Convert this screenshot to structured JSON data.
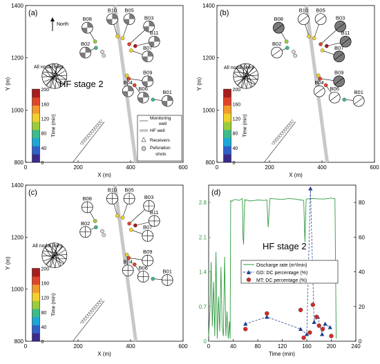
{
  "colors": {
    "colormap": [
      "#3b2a8c",
      "#2f61c9",
      "#1ca7d6",
      "#3dbb8a",
      "#9bcc3a",
      "#f2d12a",
      "#f39a2b",
      "#e0452a",
      "#a81d1d"
    ],
    "hf_well": "#c8c8c8",
    "discharge": "#2e9a3e",
    "gd": "#1f3f8f",
    "mt": "#d62a22",
    "beachball_dark": "#7a7a7a"
  },
  "panels": [
    {
      "id": "a",
      "label": "(a)",
      "stage_text": "HF stage 2",
      "nodal_text": "All nodal lines",
      "north_text": "North",
      "show_legend": true,
      "ball_style": "dark"
    },
    {
      "id": "b",
      "label": "(b)",
      "stage_text": "",
      "nodal_text": "All nodal lines",
      "north_text": "",
      "show_legend": false,
      "ball_style": "grey"
    },
    {
      "id": "c",
      "label": "(c)",
      "stage_text": "",
      "nodal_text": "All nodal lines",
      "north_text": "",
      "show_legend": false,
      "ball_style": "lines"
    }
  ],
  "map_axes": {
    "xlabel": "X (m)",
    "ylabel": "Y (m)",
    "xlim": [
      0,
      600
    ],
    "ylim": [
      800,
      1400
    ],
    "xticks": [
      "0",
      "200",
      "400",
      "600"
    ],
    "yticks": [
      "800",
      "1000",
      "1200",
      "1400"
    ]
  },
  "colorbar": {
    "label": "Time (min)",
    "ticks": [
      "200",
      "160",
      "120",
      "80",
      "40",
      "0"
    ]
  },
  "map_legend": {
    "items": [
      {
        "key": "monitoring",
        "label": "Monitoring well"
      },
      {
        "key": "hf",
        "label": "HF well"
      },
      {
        "key": "receivers",
        "label": "Receivers"
      },
      {
        "key": "perf",
        "label": "Peforation shots"
      }
    ]
  },
  "events": [
    {
      "name": "B08",
      "x": 265,
      "y": 1262,
      "time": 95,
      "bx": 235,
      "by": 1315
    },
    {
      "name": "B10",
      "x": 350,
      "y": 1282,
      "time": 118,
      "bx": 330,
      "by": 1348
    },
    {
      "name": "B05",
      "x": 370,
      "y": 1275,
      "time": 130,
      "bx": 395,
      "by": 1348
    },
    {
      "name": "B03",
      "x": 395,
      "y": 1252,
      "time": 170,
      "bx": 470,
      "by": 1320
    },
    {
      "name": "B11",
      "x": 418,
      "y": 1245,
      "time": 200,
      "bx": 490,
      "by": 1262
    },
    {
      "name": "B07",
      "x": 402,
      "y": 1228,
      "time": 130,
      "bx": 465,
      "by": 1205
    },
    {
      "name": "B02",
      "x": 268,
      "y": 1238,
      "time": 82,
      "bx": 228,
      "by": 1220
    },
    {
      "name": "B09",
      "x": 393,
      "y": 1120,
      "time": 170,
      "bx": 465,
      "by": 1110
    },
    {
      "name": "B04",
      "x": 386,
      "y": 1132,
      "time": 135,
      "bx": 390,
      "by": 1072
    },
    {
      "name": "B06",
      "x": 415,
      "y": 1095,
      "time": 175,
      "bx": 448,
      "by": 1048
    },
    {
      "name": "B01",
      "x": 485,
      "y": 1040,
      "time": 65,
      "bx": 540,
      "by": 1035
    }
  ],
  "perforation_shots": [
    {
      "x": 292,
      "y": 1223
    },
    {
      "x": 298,
      "y": 1208
    }
  ],
  "chart_data": {
    "type": "line",
    "panel_label": "(d)",
    "title": "HF stage 2",
    "xlabel": "Time (min)",
    "ylabel": "",
    "xlim": [
      0,
      240
    ],
    "ylim_left": [
      0,
      3.15
    ],
    "ylim_right": [
      0,
      90
    ],
    "x_ticks": [
      "0",
      "40",
      "80",
      "120",
      "160",
      "200",
      "240"
    ],
    "left_ticks": [
      "0",
      "0.7",
      "1.4",
      "2.1",
      "2.8"
    ],
    "right_ticks": [
      "0",
      "20",
      "40",
      "60",
      "80"
    ],
    "legend": [
      "Discharge rate (m³/min)",
      "GD: DC percentage (%)",
      "MT: DC percentage (%)"
    ],
    "series": [
      {
        "name": "Discharge rate (m³/min)",
        "axis": "left",
        "x": [
          0,
          2,
          4,
          6,
          8,
          10,
          12,
          14,
          16,
          18,
          20,
          22,
          24,
          26,
          28,
          30,
          32,
          34,
          35,
          36,
          38,
          40,
          44,
          50,
          55,
          56,
          57,
          58,
          59,
          60,
          62,
          64,
          68,
          75,
          80,
          90,
          95,
          97,
          100,
          110,
          120,
          130,
          140,
          150,
          155,
          157,
          159,
          160,
          170,
          180,
          190,
          200,
          204,
          206,
          208
        ],
        "values": [
          0.1,
          0.6,
          1.6,
          0.3,
          1.2,
          0.1,
          1.8,
          0.05,
          0.9,
          0.2,
          1.5,
          0.3,
          0.1,
          1.7,
          0.1,
          0.6,
          0.05,
          0.4,
          0.05,
          2.84,
          2.82,
          2.85,
          2.86,
          2.84,
          2.88,
          2.1,
          1.95,
          2.6,
          2.86,
          2.84,
          2.85,
          2.84,
          2.83,
          2.84,
          2.85,
          2.84,
          2.85,
          2.3,
          2.88,
          2.87,
          2.86,
          2.88,
          2.87,
          2.85,
          2.84,
          2.0,
          2.86,
          2.87,
          2.88,
          2.87,
          2.87,
          2.89,
          2.88,
          2.88,
          0.05
        ]
      },
      {
        "name": "GD: DC percentage (%)",
        "axis": "right",
        "x": [
          60,
          95,
          150,
          160,
          166,
          172,
          178,
          185,
          190,
          198
        ],
        "values": [
          10,
          14,
          7,
          4,
          88,
          11,
          14,
          4,
          10,
          8
        ]
      },
      {
        "name": "MT: DC percentage (%)",
        "axis": "right",
        "x": [
          60,
          95,
          150,
          155,
          165,
          170,
          176,
          180,
          186,
          200
        ],
        "values": [
          7,
          16,
          18,
          2,
          5,
          21,
          14,
          9,
          7,
          3
        ]
      }
    ]
  }
}
